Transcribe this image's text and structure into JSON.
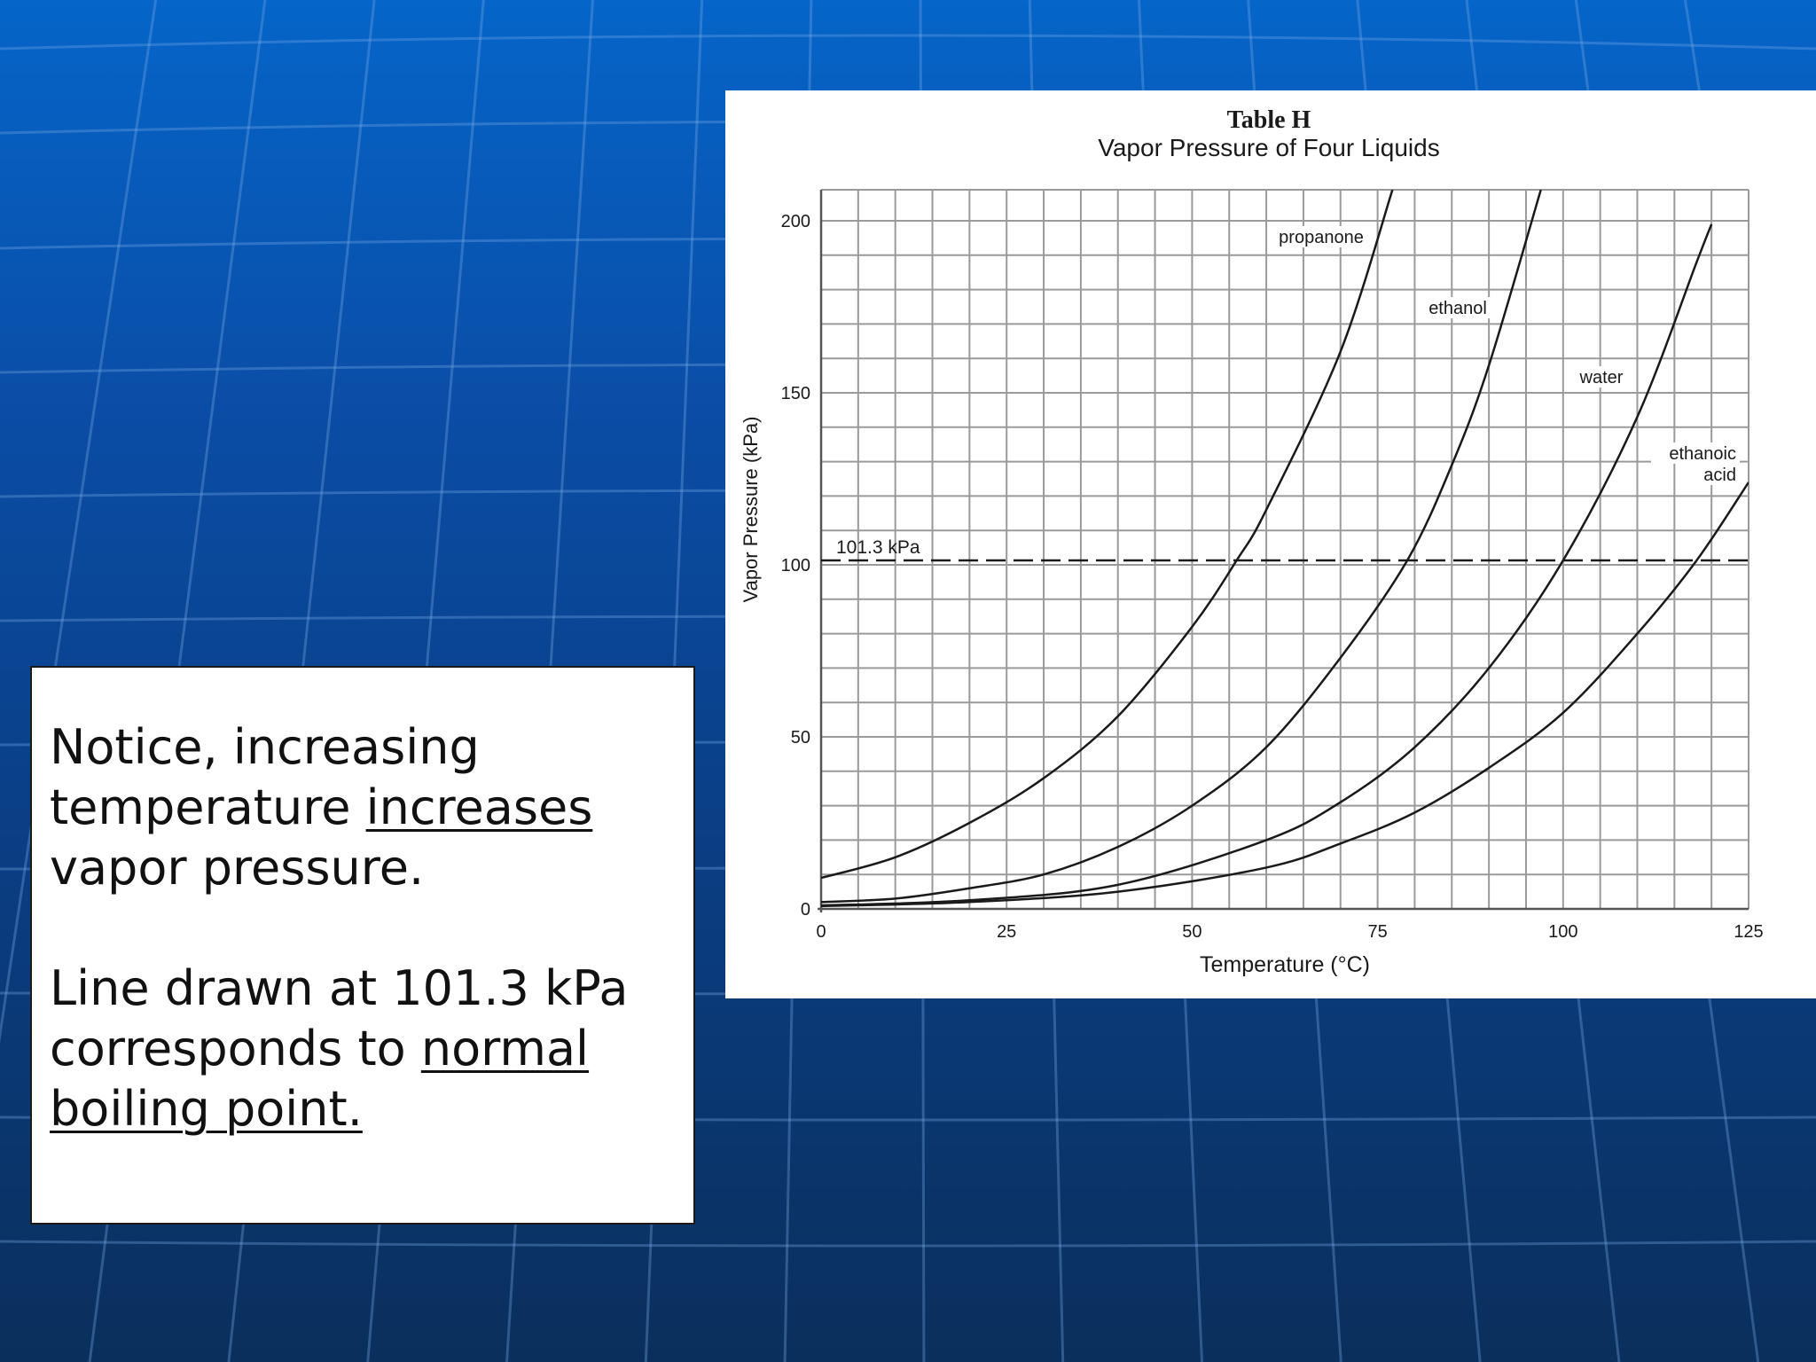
{
  "slide": {
    "note": {
      "p1": {
        "t1": "Notice, increasing temperature ",
        "t2": "increases",
        "t3": " vapor pressure."
      },
      "p2": {
        "t1": "Line drawn at 101.3 kPa corresponds to ",
        "t2": "normal boiling point."
      }
    }
  },
  "colors": {
    "background": "#0a4da6",
    "lines": "#1a1a1a",
    "grid": "#9a9a9a"
  },
  "chart_data": {
    "type": "line",
    "title": "Table H",
    "subtitle": "Vapor Pressure of Four Liquids",
    "xlabel": "Temperature (°C)",
    "ylabel": "Vapor Pressure (kPa)",
    "xlim": [
      0,
      125
    ],
    "ylim": [
      0,
      200
    ],
    "xticks": [
      0,
      25,
      50,
      75,
      100,
      125
    ],
    "yticks": [
      0,
      50,
      100,
      150,
      200
    ],
    "grid": true,
    "reference_line": {
      "y": 101.3,
      "label": "101.3 kPa",
      "style": "dashed"
    },
    "series": [
      {
        "name": "propanone",
        "x": [
          0,
          10,
          20,
          30,
          40,
          50,
          56,
          60,
          70,
          77
        ],
        "y": [
          9,
          15,
          25,
          38,
          56,
          82,
          101.3,
          116,
          162,
          209
        ]
      },
      {
        "name": "ethanol",
        "x": [
          0,
          10,
          20,
          30,
          40,
          50,
          60,
          70,
          79,
          85,
          90,
          97
        ],
        "y": [
          2,
          3,
          6,
          10,
          18,
          30,
          47,
          73,
          101.3,
          129,
          158,
          209
        ]
      },
      {
        "name": "water",
        "x": [
          0,
          20,
          40,
          60,
          70,
          80,
          90,
          100,
          110,
          118,
          120
        ],
        "y": [
          1,
          2.5,
          7,
          20,
          31,
          47,
          70,
          101.3,
          143,
          188,
          199
        ]
      },
      {
        "name": "ethanoic acid",
        "x": [
          0,
          20,
          40,
          60,
          70,
          80,
          90,
          100,
          110,
          118,
          125
        ],
        "y": [
          0.8,
          2,
          5,
          12,
          19,
          28,
          41,
          57,
          80,
          101.3,
          124
        ]
      }
    ]
  }
}
